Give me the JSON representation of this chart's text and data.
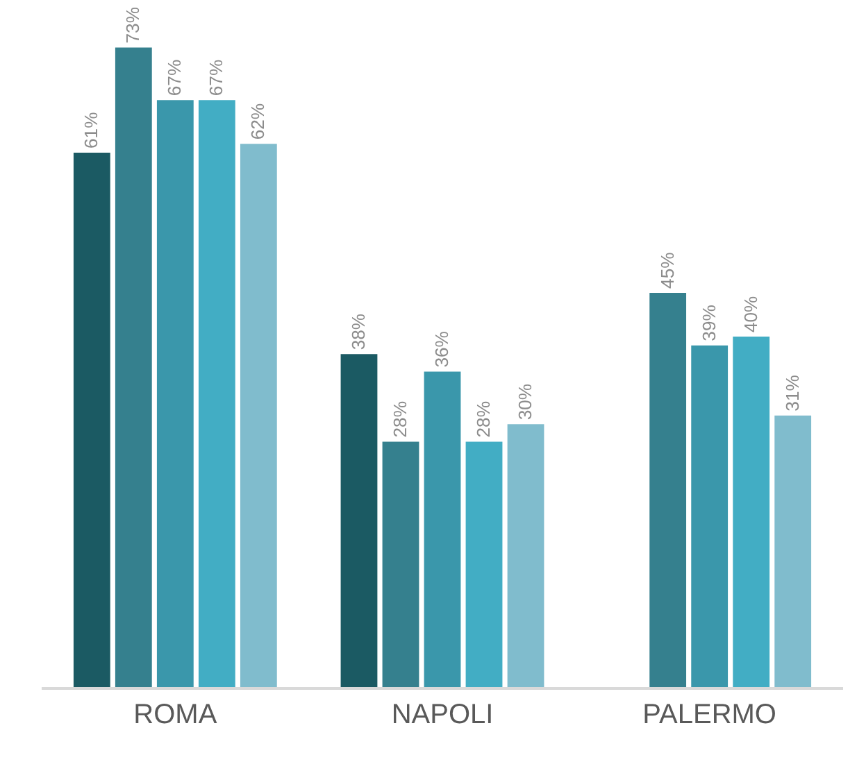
{
  "chart_data": {
    "type": "bar",
    "categories": [
      "ROMA",
      "NAPOLI",
      "PALERMO"
    ],
    "series": [
      {
        "color": "#1b5a63",
        "values": [
          61,
          38,
          null
        ],
        "value_labels": [
          "61%",
          "38%",
          null
        ]
      },
      {
        "color": "#35808e",
        "values": [
          73,
          28,
          45
        ],
        "value_labels": [
          "73%",
          "28%",
          "45%"
        ]
      },
      {
        "color": "#3a97ab",
        "values": [
          67,
          36,
          39
        ],
        "value_labels": [
          "67%",
          "36%",
          "39%"
        ]
      },
      {
        "color": "#42adc4",
        "values": [
          67,
          28,
          40
        ],
        "value_labels": [
          "67%",
          "28%",
          "40%"
        ]
      },
      {
        "color": "#80bccd",
        "values": [
          62,
          30,
          31
        ],
        "value_labels": [
          "62%",
          "30%",
          "31%"
        ]
      }
    ],
    "tick_labels": "x",
    "grid": false,
    "legend": false
  }
}
